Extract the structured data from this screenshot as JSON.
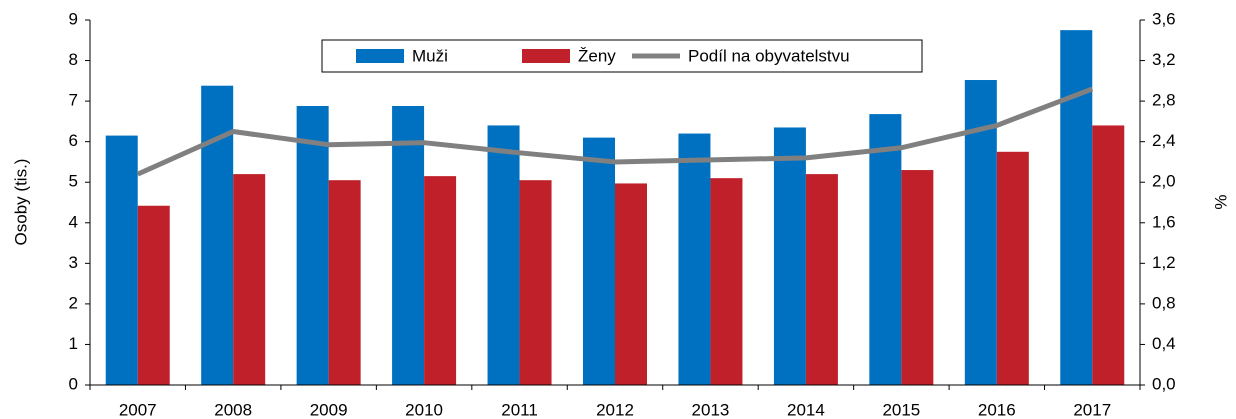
{
  "chart_data": {
    "type": "bar",
    "categories": [
      "2007",
      "2008",
      "2009",
      "2010",
      "2011",
      "2012",
      "2013",
      "2014",
      "2015",
      "2016",
      "2017"
    ],
    "series": [
      {
        "name": "Muži",
        "color": "#0070c0",
        "values": [
          6.15,
          7.38,
          6.88,
          6.88,
          6.4,
          6.1,
          6.2,
          6.35,
          6.68,
          7.52,
          8.75
        ]
      },
      {
        "name": "Ženy",
        "color": "#c0202a",
        "values": [
          4.42,
          5.2,
          5.05,
          5.15,
          5.05,
          4.97,
          5.1,
          5.2,
          5.3,
          5.75,
          6.4
        ]
      },
      {
        "name": "Podíl na obyvatelstvu",
        "color": "#808080",
        "type": "line",
        "axis": "y2",
        "values": [
          2.08,
          2.5,
          2.37,
          2.39,
          2.29,
          2.2,
          2.22,
          2.24,
          2.34,
          2.56,
          2.92
        ]
      }
    ],
    "ylabel": "Osoby (tis.)",
    "y2label": "%",
    "ylim": [
      0,
      9
    ],
    "yticks": [
      0,
      1,
      2,
      3,
      4,
      5,
      6,
      7,
      8,
      9
    ],
    "y2lim": [
      0,
      3.6
    ],
    "y2ticks": [
      {
        "value": 0,
        "label": "0,0"
      },
      {
        "value": 0.4,
        "label": "0,4"
      },
      {
        "value": 0.8,
        "label": "0,8"
      },
      {
        "value": 1.2,
        "label": "1,2"
      },
      {
        "value": 1.6,
        "label": "1,6"
      },
      {
        "value": 2.0,
        "label": "2,0"
      },
      {
        "value": 2.4,
        "label": "2,4"
      },
      {
        "value": 2.8,
        "label": "2,8"
      },
      {
        "value": 3.2,
        "label": "3,2"
      },
      {
        "value": 3.6,
        "label": "3,6"
      }
    ],
    "grid": false,
    "legend": "top"
  }
}
